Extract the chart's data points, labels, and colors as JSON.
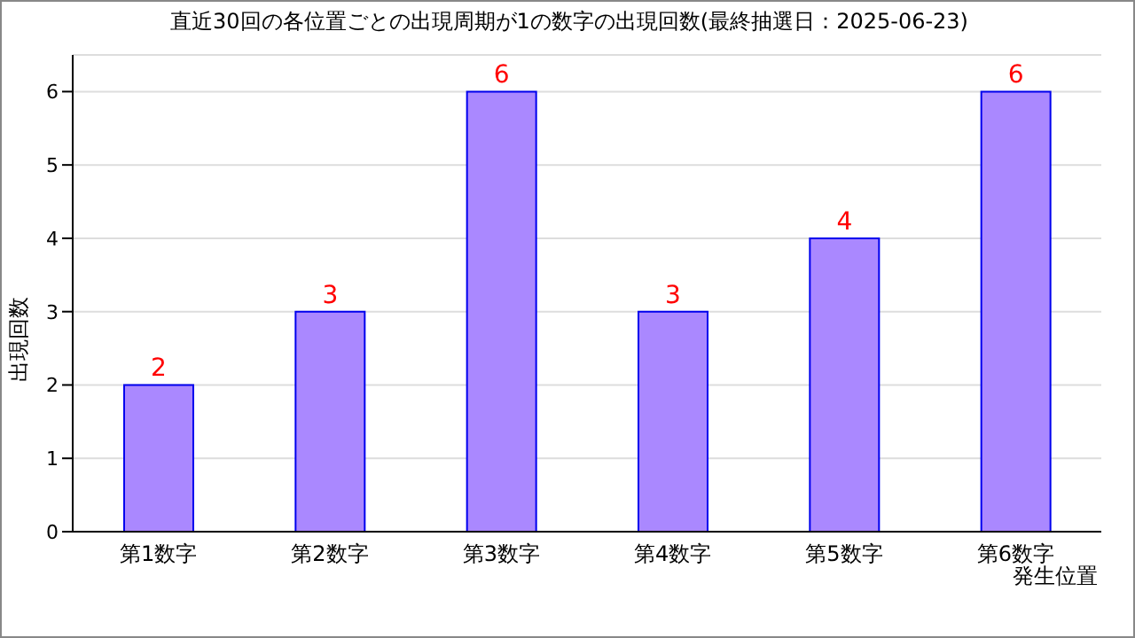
{
  "chart_data": {
    "type": "bar",
    "title": "直近30回の各位置ごとの出現周期が1の数字の出現回数(最終抽選日：2025-06-23)",
    "xlabel": "発生位置",
    "ylabel": "出現回数",
    "categories": [
      "第1数字",
      "第2数字",
      "第3数字",
      "第4数字",
      "第5数字",
      "第6数字"
    ],
    "values": [
      2,
      3,
      6,
      3,
      4,
      6
    ],
    "color": "#aa88ff",
    "ylim": [
      0,
      6.5
    ],
    "yticks": [
      0,
      1,
      2,
      3,
      4,
      5,
      6
    ],
    "grid": "y",
    "data_labels": true
  }
}
